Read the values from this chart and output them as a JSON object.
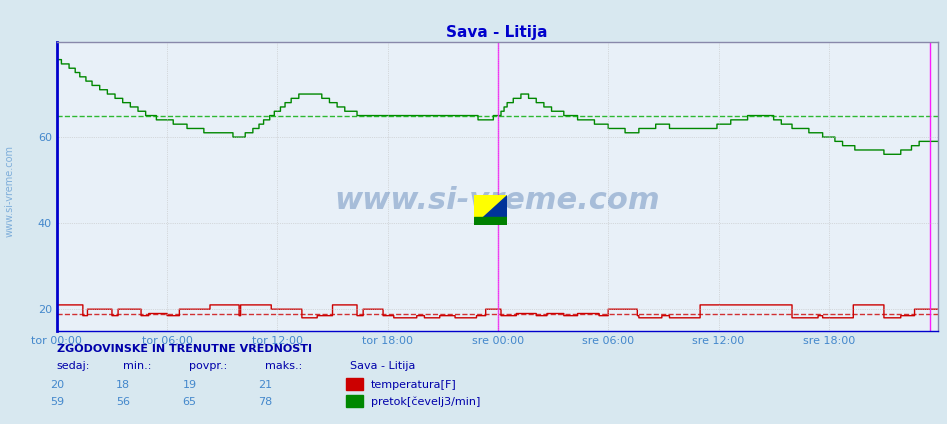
{
  "title": "Sava - Litija",
  "title_color": "#0000cc",
  "bg_color": "#d8e8f0",
  "plot_bg_color": "#e8f0f8",
  "grid_color": "#c0c0c0",
  "xlabel_color": "#4488cc",
  "ylabel_color": "#4488cc",
  "x_tick_labels": [
    "tor 00:00",
    "tor 06:00",
    "tor 12:00",
    "tor 18:00",
    "sre 00:00",
    "sre 06:00",
    "sre 12:00",
    "sre 18:00"
  ],
  "x_tick_positions": [
    0,
    72,
    144,
    216,
    288,
    360,
    432,
    504
  ],
  "ylim": [
    15,
    82
  ],
  "yticks": [
    20,
    40,
    60
  ],
  "n_points": 576,
  "temp_avg": 19,
  "temp_min": 18,
  "temp_max": 21,
  "temp_current": 20,
  "flow_avg": 65,
  "flow_min": 56,
  "flow_max": 78,
  "flow_current": 59,
  "temp_color": "#cc0000",
  "flow_color": "#008800",
  "avg_line_color_temp": "#cc0000",
  "avg_line_color_flow": "#00aa00",
  "vline_color": "#ff00ff",
  "vline_positions": [
    288,
    570
  ],
  "watermark": "www.si-vreme.com",
  "watermark_color": "#3060a0",
  "watermark_alpha": 0.35,
  "left_label": "www.si-vreme.com",
  "footer_title": "ZGODOVINSKE IN TRENUTNE VREDNOSTI",
  "footer_col_headers": [
    "sedaj:",
    "min.:",
    "povpr.:",
    "maks.:",
    "Sava - Litija"
  ],
  "footer_row1": [
    "20",
    "18",
    "19",
    "21",
    "temperatura[F]"
  ],
  "footer_row2": [
    "59",
    "56",
    "65",
    "78",
    "pretok[čevelj3/min]"
  ]
}
